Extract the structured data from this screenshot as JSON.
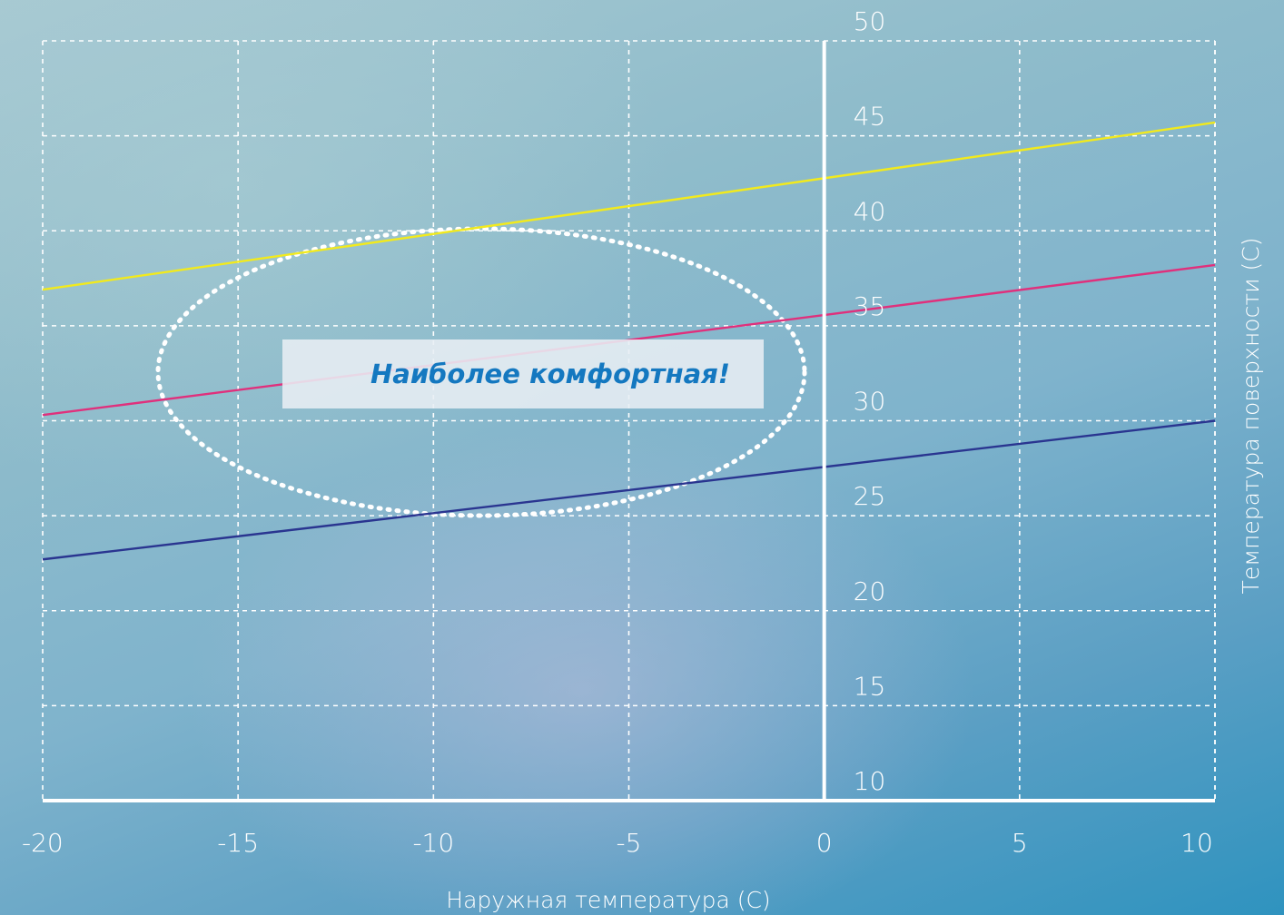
{
  "chart_data": {
    "type": "line",
    "xlabel": "Наружная температура (С)",
    "ylabel": "Температура поверхности (С)",
    "x_ticks": [
      "-20",
      "-15",
      "-10",
      "-5",
      "0",
      "5",
      "10"
    ],
    "y_ticks": [
      "10",
      "15",
      "20",
      "25",
      "30",
      "35",
      "40",
      "45",
      "50"
    ],
    "xlim": [
      -20,
      10
    ],
    "ylim": [
      10,
      50
    ],
    "grid": true,
    "series": [
      {
        "color": "#f2ea1d",
        "x": [
          -20,
          10
        ],
        "y": [
          36.9,
          45.7
        ]
      },
      {
        "color": "#e0307c",
        "x": [
          -20,
          10
        ],
        "y": [
          30.3,
          38.2
        ]
      },
      {
        "color": "#2a3590",
        "x": [
          -20,
          10
        ],
        "y": [
          22.7,
          30.0
        ]
      }
    ],
    "annotation": {
      "text": "Наиболее комфортная!",
      "highlight": "dotted-ellipse"
    }
  }
}
